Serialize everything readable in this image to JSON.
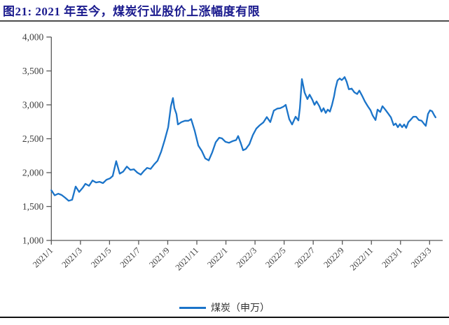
{
  "figure": {
    "title": "图21:  2021 年至今，煤炭行业股价上涨幅度有限",
    "legend": {
      "label": "煤炭（申万）"
    },
    "colors": {
      "title": "#1b1b8e",
      "title_rule": "#4d4d4d",
      "bottom_rule": "#111111",
      "axis": "#595959",
      "tick_label": "#3d3d3d",
      "series_line": "#1b74c9"
    }
  },
  "chart_data": {
    "type": "line",
    "title": "2021 年至今，煤炭行业股价上涨幅度有限",
    "xlabel": "",
    "ylabel": "",
    "grid": false,
    "legend_position": "bottom-center",
    "x_unit": "months since 2021/1 (0 = 2021/1)",
    "x_tick_labels": [
      "2021/1",
      "2021/3",
      "2021/5",
      "2021/7",
      "2021/9",
      "2021/11",
      "2022/1",
      "2022/3",
      "2022/5",
      "2022/7",
      "2022/9",
      "2022/11",
      "2023/1",
      "2023/3"
    ],
    "x_tick_months": [
      0,
      2,
      4,
      6,
      8,
      10,
      12,
      14,
      16,
      18,
      20,
      22,
      24,
      26
    ],
    "xlim": [
      0,
      26.6
    ],
    "y_ticks": [
      1000,
      1500,
      2000,
      2500,
      3000,
      3500,
      4000
    ],
    "y_tick_labels": [
      "1,000",
      "1,500",
      "2,000",
      "2,500",
      "3,000",
      "3,500",
      "4,000"
    ],
    "ylim": [
      1000,
      4000
    ],
    "series": [
      {
        "name": "煤炭（申万）",
        "color": "#1b74c9",
        "points": [
          [
            0.0,
            1740
          ],
          [
            0.23,
            1665
          ],
          [
            0.47,
            1690
          ],
          [
            0.71,
            1670
          ],
          [
            0.95,
            1630
          ],
          [
            1.19,
            1585
          ],
          [
            1.43,
            1600
          ],
          [
            1.67,
            1795
          ],
          [
            1.91,
            1715
          ],
          [
            2.15,
            1775
          ],
          [
            2.34,
            1835
          ],
          [
            2.59,
            1805
          ],
          [
            2.83,
            1885
          ],
          [
            3.07,
            1855
          ],
          [
            3.31,
            1865
          ],
          [
            3.55,
            1845
          ],
          [
            3.79,
            1895
          ],
          [
            4.03,
            1915
          ],
          [
            4.22,
            1950
          ],
          [
            4.46,
            2170
          ],
          [
            4.7,
            1985
          ],
          [
            4.94,
            2015
          ],
          [
            5.19,
            2090
          ],
          [
            5.43,
            2040
          ],
          [
            5.67,
            2050
          ],
          [
            5.91,
            2000
          ],
          [
            6.15,
            1970
          ],
          [
            6.34,
            2020
          ],
          [
            6.58,
            2070
          ],
          [
            6.82,
            2055
          ],
          [
            7.06,
            2120
          ],
          [
            7.3,
            2175
          ],
          [
            7.55,
            2310
          ],
          [
            7.79,
            2480
          ],
          [
            8.03,
            2670
          ],
          [
            8.22,
            2980
          ],
          [
            8.36,
            3100
          ],
          [
            8.46,
            2950
          ],
          [
            8.6,
            2865
          ],
          [
            8.7,
            2710
          ],
          [
            8.94,
            2745
          ],
          [
            9.18,
            2765
          ],
          [
            9.42,
            2765
          ],
          [
            9.61,
            2790
          ],
          [
            9.85,
            2620
          ],
          [
            10.1,
            2400
          ],
          [
            10.34,
            2320
          ],
          [
            10.58,
            2210
          ],
          [
            10.82,
            2180
          ],
          [
            11.06,
            2300
          ],
          [
            11.3,
            2450
          ],
          [
            11.54,
            2515
          ],
          [
            11.73,
            2505
          ],
          [
            11.97,
            2455
          ],
          [
            12.21,
            2440
          ],
          [
            12.46,
            2465
          ],
          [
            12.7,
            2480
          ],
          [
            12.84,
            2540
          ],
          [
            13.03,
            2430
          ],
          [
            13.18,
            2330
          ],
          [
            13.37,
            2350
          ],
          [
            13.61,
            2420
          ],
          [
            13.85,
            2555
          ],
          [
            14.09,
            2650
          ],
          [
            14.33,
            2700
          ],
          [
            14.57,
            2740
          ],
          [
            14.81,
            2820
          ],
          [
            15.05,
            2745
          ],
          [
            15.29,
            2915
          ],
          [
            15.54,
            2945
          ],
          [
            15.73,
            2950
          ],
          [
            15.97,
            2975
          ],
          [
            16.11,
            3000
          ],
          [
            16.35,
            2790
          ],
          [
            16.55,
            2710
          ],
          [
            16.79,
            2825
          ],
          [
            16.98,
            2770
          ],
          [
            17.08,
            2950
          ],
          [
            17.22,
            3380
          ],
          [
            17.41,
            3180
          ],
          [
            17.6,
            3085
          ],
          [
            17.75,
            3150
          ],
          [
            17.94,
            3075
          ],
          [
            18.09,
            3000
          ],
          [
            18.23,
            3050
          ],
          [
            18.42,
            2980
          ],
          [
            18.57,
            2900
          ],
          [
            18.71,
            2950
          ],
          [
            18.86,
            2880
          ],
          [
            19.0,
            2930
          ],
          [
            19.15,
            2900
          ],
          [
            19.29,
            3000
          ],
          [
            19.43,
            3125
          ],
          [
            19.53,
            3240
          ],
          [
            19.67,
            3360
          ],
          [
            19.82,
            3390
          ],
          [
            19.96,
            3365
          ],
          [
            20.06,
            3385
          ],
          [
            20.16,
            3410
          ],
          [
            20.3,
            3340
          ],
          [
            20.45,
            3230
          ],
          [
            20.64,
            3240
          ],
          [
            20.83,
            3185
          ],
          [
            21.02,
            3160
          ],
          [
            21.17,
            3210
          ],
          [
            21.36,
            3135
          ],
          [
            21.55,
            3050
          ],
          [
            21.75,
            2980
          ],
          [
            21.94,
            2920
          ],
          [
            22.08,
            2845
          ],
          [
            22.28,
            2775
          ],
          [
            22.42,
            2930
          ],
          [
            22.61,
            2895
          ],
          [
            22.76,
            2980
          ],
          [
            22.95,
            2930
          ],
          [
            23.14,
            2875
          ],
          [
            23.34,
            2815
          ],
          [
            23.53,
            2700
          ],
          [
            23.67,
            2725
          ],
          [
            23.82,
            2670
          ],
          [
            23.96,
            2715
          ],
          [
            24.11,
            2670
          ],
          [
            24.25,
            2710
          ],
          [
            24.39,
            2660
          ],
          [
            24.54,
            2745
          ],
          [
            24.68,
            2775
          ],
          [
            24.88,
            2825
          ],
          [
            25.07,
            2825
          ],
          [
            25.26,
            2775
          ],
          [
            25.45,
            2765
          ],
          [
            25.6,
            2725
          ],
          [
            25.74,
            2690
          ],
          [
            25.89,
            2865
          ],
          [
            26.03,
            2920
          ],
          [
            26.17,
            2905
          ],
          [
            26.32,
            2845
          ],
          [
            26.41,
            2815
          ]
        ]
      }
    ]
  }
}
